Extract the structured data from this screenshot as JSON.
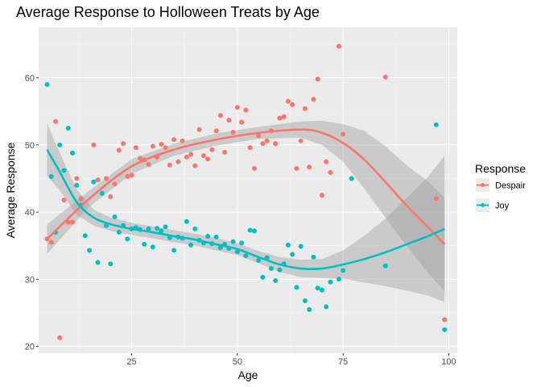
{
  "chart_data": {
    "type": "scatter",
    "title": "Average Response to Holloween Treats by Age",
    "xlabel": "Age",
    "ylabel": "Average Response",
    "xlim": [
      3,
      102
    ],
    "ylim": [
      19,
      67.5
    ],
    "xticks": [
      25,
      50,
      75,
      100
    ],
    "yticks": [
      20,
      30,
      40,
      50,
      60
    ],
    "grid": true,
    "legend_title": "Response",
    "legend_position": "right",
    "series": [
      {
        "name": "Despair",
        "color": "#F8766D",
        "points": [
          [
            5,
            36
          ],
          [
            6,
            35.5
          ],
          [
            7,
            53.5
          ],
          [
            8,
            21.3
          ],
          [
            9,
            41.8
          ],
          [
            10,
            38.5
          ],
          [
            11,
            38.5
          ],
          [
            12,
            45
          ],
          [
            13,
            42
          ],
          [
            16,
            50
          ],
          [
            17,
            44.8
          ],
          [
            19,
            45
          ],
          [
            20,
            42.3
          ],
          [
            21,
            44.2
          ],
          [
            22,
            49.2
          ],
          [
            23,
            50.2
          ],
          [
            24,
            45.3
          ],
          [
            25,
            45.5
          ],
          [
            26,
            49.6
          ],
          [
            27,
            48
          ],
          [
            28,
            47.8
          ],
          [
            29,
            47.1
          ],
          [
            30,
            49.8
          ],
          [
            31,
            48.2
          ],
          [
            32,
            50.1
          ],
          [
            33,
            49.6
          ],
          [
            34,
            47
          ],
          [
            35,
            50.8
          ],
          [
            36,
            47.5
          ],
          [
            37,
            50.6
          ],
          [
            38,
            48.2
          ],
          [
            39,
            48.6
          ],
          [
            40,
            46.9
          ],
          [
            41,
            52.3
          ],
          [
            42,
            48.4
          ],
          [
            43,
            47.9
          ],
          [
            44,
            49.3
          ],
          [
            45,
            52.1
          ],
          [
            46,
            54.4
          ],
          [
            47,
            48.9
          ],
          [
            48,
            53.7
          ],
          [
            49,
            51.9
          ],
          [
            50,
            55.6
          ],
          [
            51,
            53.4
          ],
          [
            52,
            55.2
          ],
          [
            53,
            49.6
          ],
          [
            54,
            46.5
          ],
          [
            55,
            51.4
          ],
          [
            56,
            50.2
          ],
          [
            57,
            50.6
          ],
          [
            58,
            52.1
          ],
          [
            59,
            50.2
          ],
          [
            60,
            54
          ],
          [
            61,
            54.2
          ],
          [
            62,
            56.5
          ],
          [
            63,
            56
          ],
          [
            64,
            46.5
          ],
          [
            65,
            50.6
          ],
          [
            66,
            55.4
          ],
          [
            67,
            46.7
          ],
          [
            68,
            56.8
          ],
          [
            69,
            59.8
          ],
          [
            70,
            42.5
          ],
          [
            71,
            47.5
          ],
          [
            72,
            45.9
          ],
          [
            74,
            64.7
          ],
          [
            75,
            51.6
          ],
          [
            85,
            60.1
          ],
          [
            97,
            42
          ],
          [
            99,
            24
          ]
        ],
        "smooth": [
          [
            5,
            36
          ],
          [
            15,
            42
          ],
          [
            25,
            46.8
          ],
          [
            35,
            49.3
          ],
          [
            45,
            50.8
          ],
          [
            55,
            51.8
          ],
          [
            65,
            52.3
          ],
          [
            70,
            51.8
          ],
          [
            75,
            50.3
          ],
          [
            80,
            47.8
          ],
          [
            85,
            44.5
          ],
          [
            90,
            41
          ],
          [
            95,
            37.8
          ],
          [
            99,
            35.2
          ]
        ],
        "smooth_band": {
          "lower": [
            [
              5,
              33.8
            ],
            [
              15,
              40.8
            ],
            [
              25,
              45.7
            ],
            [
              35,
              48.4
            ],
            [
              45,
              49.9
            ],
            [
              55,
              50.9
            ],
            [
              65,
              51.1
            ],
            [
              70,
              50
            ],
            [
              75,
              47.5
            ],
            [
              80,
              43.5
            ],
            [
              85,
              39.2
            ],
            [
              90,
              35
            ],
            [
              95,
              31
            ],
            [
              99,
              28.2
            ]
          ],
          "upper": [
            [
              5,
              38.2
            ],
            [
              15,
              43.2
            ],
            [
              25,
              47.9
            ],
            [
              35,
              50.2
            ],
            [
              45,
              51.7
            ],
            [
              55,
              52.7
            ],
            [
              65,
              53.5
            ],
            [
              70,
              53.6
            ],
            [
              75,
              53.1
            ],
            [
              80,
              52.1
            ],
            [
              85,
              49.8
            ],
            [
              90,
              47
            ],
            [
              95,
              44.6
            ],
            [
              99,
              42.2
            ]
          ]
        }
      },
      {
        "name": "Joy",
        "color": "#00BFC4",
        "points": [
          [
            5,
            59
          ],
          [
            6,
            45.3
          ],
          [
            7,
            37
          ],
          [
            8,
            50
          ],
          [
            9,
            46.2
          ],
          [
            10,
            52.5
          ],
          [
            11,
            48.8
          ],
          [
            12,
            44
          ],
          [
            13,
            41
          ],
          [
            14,
            36.5
          ],
          [
            15,
            34.3
          ],
          [
            16,
            44.5
          ],
          [
            17,
            32.5
          ],
          [
            18,
            42.8
          ],
          [
            19,
            38
          ],
          [
            20,
            32.3
          ],
          [
            21,
            39.3
          ],
          [
            22,
            37
          ],
          [
            23,
            38
          ],
          [
            24,
            36
          ],
          [
            25,
            37.5
          ],
          [
            26,
            37.7
          ],
          [
            27,
            37.4
          ],
          [
            28,
            35.2
          ],
          [
            29,
            37.5
          ],
          [
            30,
            34.8
          ],
          [
            31,
            37.6
          ],
          [
            32,
            37.2
          ],
          [
            33,
            37.8
          ],
          [
            34,
            36.2
          ],
          [
            35,
            34.3
          ],
          [
            36,
            36.3
          ],
          [
            37,
            36.1
          ],
          [
            38,
            38.6
          ],
          [
            39,
            35.1
          ],
          [
            40,
            37.5
          ],
          [
            41,
            35.8
          ],
          [
            42,
            35.4
          ],
          [
            43,
            36.4
          ],
          [
            44,
            35.3
          ],
          [
            45,
            36.3
          ],
          [
            46,
            34.7
          ],
          [
            47,
            35.2
          ],
          [
            48,
            34.6
          ],
          [
            49,
            35.6
          ],
          [
            50,
            34.1
          ],
          [
            51,
            35.4
          ],
          [
            52,
            33.5
          ],
          [
            53,
            37.3
          ],
          [
            54,
            37.2
          ],
          [
            55,
            32.8
          ],
          [
            56,
            30.3
          ],
          [
            57,
            33.2
          ],
          [
            58,
            31.6
          ],
          [
            59,
            29.8
          ],
          [
            60,
            31.4
          ],
          [
            61,
            32.3
          ],
          [
            62,
            35.1
          ],
          [
            63,
            33.7
          ],
          [
            64,
            28.8
          ],
          [
            65,
            34.9
          ],
          [
            66,
            26.8
          ],
          [
            67,
            25.5
          ],
          [
            68,
            33.3
          ],
          [
            69,
            28.7
          ],
          [
            70,
            28.4
          ],
          [
            71,
            25.9
          ],
          [
            72,
            29.6
          ],
          [
            74,
            30
          ],
          [
            75,
            31.3
          ],
          [
            77,
            45
          ],
          [
            85,
            32
          ],
          [
            97,
            53
          ],
          [
            99,
            22.5
          ]
        ],
        "smooth": [
          [
            5,
            49.3
          ],
          [
            8,
            46
          ],
          [
            12,
            41.5
          ],
          [
            16,
            39.2
          ],
          [
            20,
            38.2
          ],
          [
            25,
            37.5
          ],
          [
            30,
            37
          ],
          [
            35,
            36.4
          ],
          [
            40,
            35.9
          ],
          [
            45,
            35.2
          ],
          [
            50,
            34.5
          ],
          [
            55,
            33.3
          ],
          [
            60,
            32.2
          ],
          [
            65,
            31.6
          ],
          [
            70,
            31.6
          ],
          [
            75,
            32.2
          ],
          [
            80,
            33
          ],
          [
            85,
            34
          ],
          [
            90,
            35.2
          ],
          [
            95,
            36.4
          ],
          [
            99,
            37.5
          ]
        ],
        "smooth_band": {
          "lower": [
            [
              5,
              45.4
            ],
            [
              8,
              43.2
            ],
            [
              12,
              39.6
            ],
            [
              16,
              38
            ],
            [
              20,
              37.2
            ],
            [
              25,
              36.6
            ],
            [
              30,
              36.1
            ],
            [
              35,
              35.5
            ],
            [
              40,
              35
            ],
            [
              45,
              34.3
            ],
            [
              50,
              33.6
            ],
            [
              55,
              32.4
            ],
            [
              60,
              31.1
            ],
            [
              65,
              30.3
            ],
            [
              70,
              30.2
            ],
            [
              75,
              30.1
            ],
            [
              80,
              29.5
            ],
            [
              85,
              29
            ],
            [
              90,
              28.3
            ],
            [
              95,
              27.6
            ],
            [
              99,
              26.6
            ]
          ],
          "upper": [
            [
              5,
              53.2
            ],
            [
              8,
              48.8
            ],
            [
              12,
              43.4
            ],
            [
              16,
              40.4
            ],
            [
              20,
              39.2
            ],
            [
              25,
              38.4
            ],
            [
              30,
              37.9
            ],
            [
              35,
              37.3
            ],
            [
              40,
              36.8
            ],
            [
              45,
              36.1
            ],
            [
              50,
              35.4
            ],
            [
              55,
              34.2
            ],
            [
              60,
              33.3
            ],
            [
              65,
              32.9
            ],
            [
              70,
              33
            ],
            [
              75,
              34.3
            ],
            [
              80,
              36.5
            ],
            [
              85,
              39
            ],
            [
              90,
              42.1
            ],
            [
              95,
              45.2
            ],
            [
              99,
              48.4
            ]
          ]
        }
      }
    ]
  }
}
